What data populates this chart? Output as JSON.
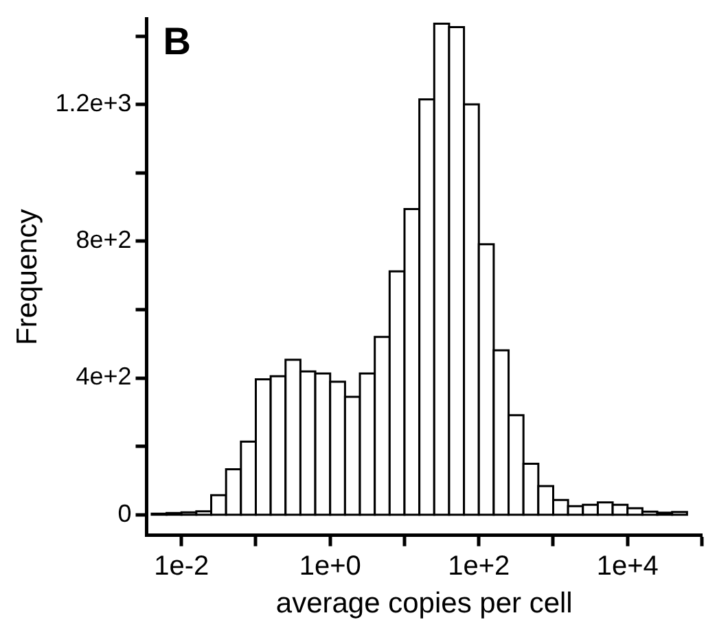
{
  "chart_data": {
    "type": "histogram",
    "xlabel": "average copies per cell",
    "ylabel": "Frequency",
    "annotations": [
      "B"
    ],
    "log": "x",
    "color": "#ffffff",
    "grid": false,
    "legend": false,
    "bins": [
      0.003981,
      0.00631,
      0.01,
      0.01585,
      0.02512,
      0.03981,
      0.0631,
      0.1,
      0.1585,
      0.2512,
      0.3981,
      0.631,
      1,
      1.585,
      2.512,
      3.981,
      6.31,
      10,
      15.85,
      25.12,
      39.81,
      63.1,
      100,
      158.5,
      251.2,
      398.1,
      631,
      1000,
      1585,
      2512,
      3981,
      6310,
      10000,
      15850,
      25120,
      39810,
      63100
    ],
    "values": [
      3,
      5,
      7,
      10,
      57,
      133,
      214,
      396,
      405,
      453,
      419,
      413,
      389,
      345,
      413,
      520,
      712,
      894,
      1215,
      1436,
      1426,
      1200,
      791,
      481,
      291,
      149,
      84,
      43,
      25,
      29,
      36,
      29,
      19,
      9,
      6,
      8
    ],
    "xlim": [
      0.0034,
      100000
    ],
    "xticks": [
      {
        "value": 0.01,
        "label": "1e-2"
      },
      {
        "value": 0.1,
        "label": null
      },
      {
        "value": 1,
        "label": "1e+0"
      },
      {
        "value": 10,
        "label": null
      },
      {
        "value": 100,
        "label": "1e+2"
      },
      {
        "value": 1000,
        "label": null
      },
      {
        "value": 10000,
        "label": "1e+4"
      },
      {
        "value": 100000,
        "label": null
      }
    ],
    "ylim": [
      -60,
      1450
    ],
    "yticks": [
      0,
      {
        "value": 200,
        "label": null
      },
      {
        "value": 400,
        "label": "4e+2"
      },
      {
        "value": 600,
        "label": null
      },
      {
        "value": 800,
        "label": "8e+2"
      },
      {
        "value": 1000,
        "label": null
      },
      {
        "value": 1200,
        "label": "1.2e+3"
      },
      {
        "value": 1400,
        "label": null
      }
    ]
  }
}
